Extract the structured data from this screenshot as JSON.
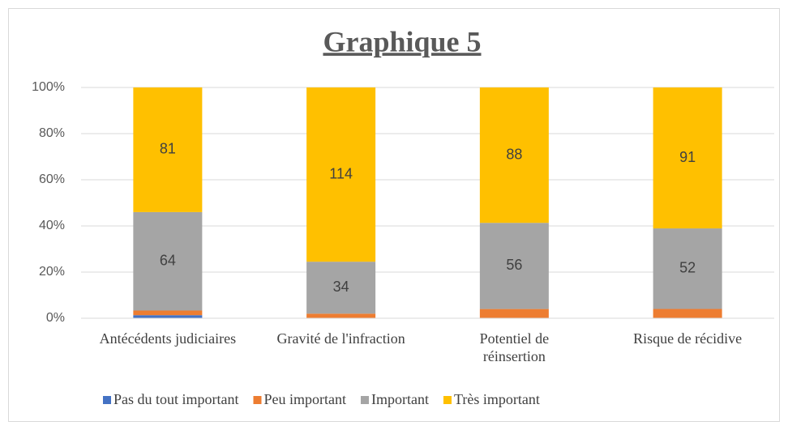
{
  "chart_data": {
    "type": "stacked_bar_100",
    "title": "Graphique 5",
    "categories": [
      "Antécédents judiciaires",
      "Gravité de l'infraction",
      "Potentiel de réinsertion",
      "Risque de récidive"
    ],
    "series": [
      {
        "name": "Pas du tout important",
        "color": "#4472c4",
        "values": [
          2,
          0,
          0,
          0
        ],
        "labels": false
      },
      {
        "name": "Peu important",
        "color": "#ed7d31",
        "values": [
          3,
          3,
          6,
          6
        ],
        "labels": false
      },
      {
        "name": "Important",
        "color": "#a5a5a5",
        "values": [
          64,
          34,
          56,
          52
        ],
        "labels": true
      },
      {
        "name": "Très important",
        "color": "#ffc000",
        "values": [
          81,
          114,
          88,
          91
        ],
        "labels": true
      }
    ],
    "ylim": [
      0,
      100
    ],
    "yticks": [
      {
        "value": 0,
        "label": "0%"
      },
      {
        "value": 20,
        "label": "20%"
      },
      {
        "value": 40,
        "label": "40%"
      },
      {
        "value": 60,
        "label": "60%"
      },
      {
        "value": 80,
        "label": "80%"
      },
      {
        "value": 100,
        "label": "100%"
      }
    ],
    "grid": true,
    "legend": "bottom"
  }
}
